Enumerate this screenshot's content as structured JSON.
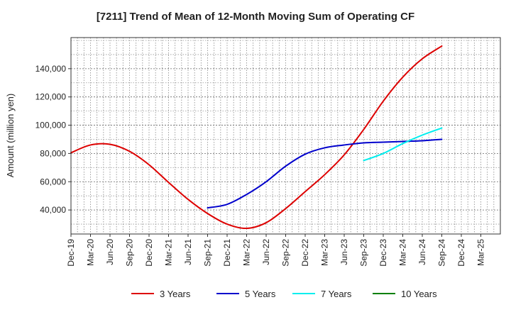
{
  "chart_data": {
    "type": "line",
    "title": "[7211]  Trend of Mean of 12-Month Moving Sum of Operating CF",
    "xlabel": "",
    "ylabel": "Amount (million yen)",
    "ylim": [
      23000,
      162000
    ],
    "y_ticks": [
      40000,
      60000,
      80000,
      100000,
      120000,
      140000
    ],
    "y_tick_labels": [
      "40,000",
      "60,000",
      "80,000",
      "100,000",
      "120,000",
      "140,000"
    ],
    "x_tick_labels": [
      "Dec-19",
      "Mar-20",
      "Jun-20",
      "Sep-20",
      "Dec-20",
      "Mar-21",
      "Jun-21",
      "Sep-21",
      "Dec-21",
      "Mar-22",
      "Jun-22",
      "Sep-22",
      "Dec-22",
      "Mar-23",
      "Jun-23",
      "Sep-23",
      "Dec-23",
      "Mar-24",
      "Jun-24",
      "Sep-24",
      "Dec-24",
      "Mar-25"
    ],
    "x_range_months": [
      0,
      66
    ],
    "grid": true,
    "legend_position": "bottom",
    "series": [
      {
        "name": "3 Years",
        "color": "#dd0000",
        "x": [
          0,
          3,
          6,
          9,
          12,
          15,
          18,
          21,
          24,
          27,
          30,
          33,
          36,
          39,
          42,
          45,
          48,
          51,
          54,
          57
        ],
        "values": [
          80500,
          86000,
          86500,
          81500,
          72000,
          59500,
          47500,
          37500,
          30000,
          27000,
          31000,
          41000,
          53000,
          65000,
          79000,
          97000,
          117000,
          134000,
          147000,
          156000
        ]
      },
      {
        "name": "5 Years",
        "color": "#0000cc",
        "x": [
          21,
          24,
          27,
          30,
          33,
          36,
          39,
          42,
          45,
          48,
          51,
          54,
          57
        ],
        "values": [
          41500,
          44000,
          51000,
          60000,
          71000,
          79500,
          84000,
          86000,
          87500,
          88000,
          88500,
          89000,
          90000
        ]
      },
      {
        "name": "7 Years",
        "color": "#00eeee",
        "x": [
          45,
          48,
          51,
          54,
          57
        ],
        "values": [
          75000,
          80000,
          87000,
          93000,
          98000
        ]
      },
      {
        "name": "10 Years",
        "color": "#008000",
        "x": [],
        "values": []
      }
    ]
  }
}
